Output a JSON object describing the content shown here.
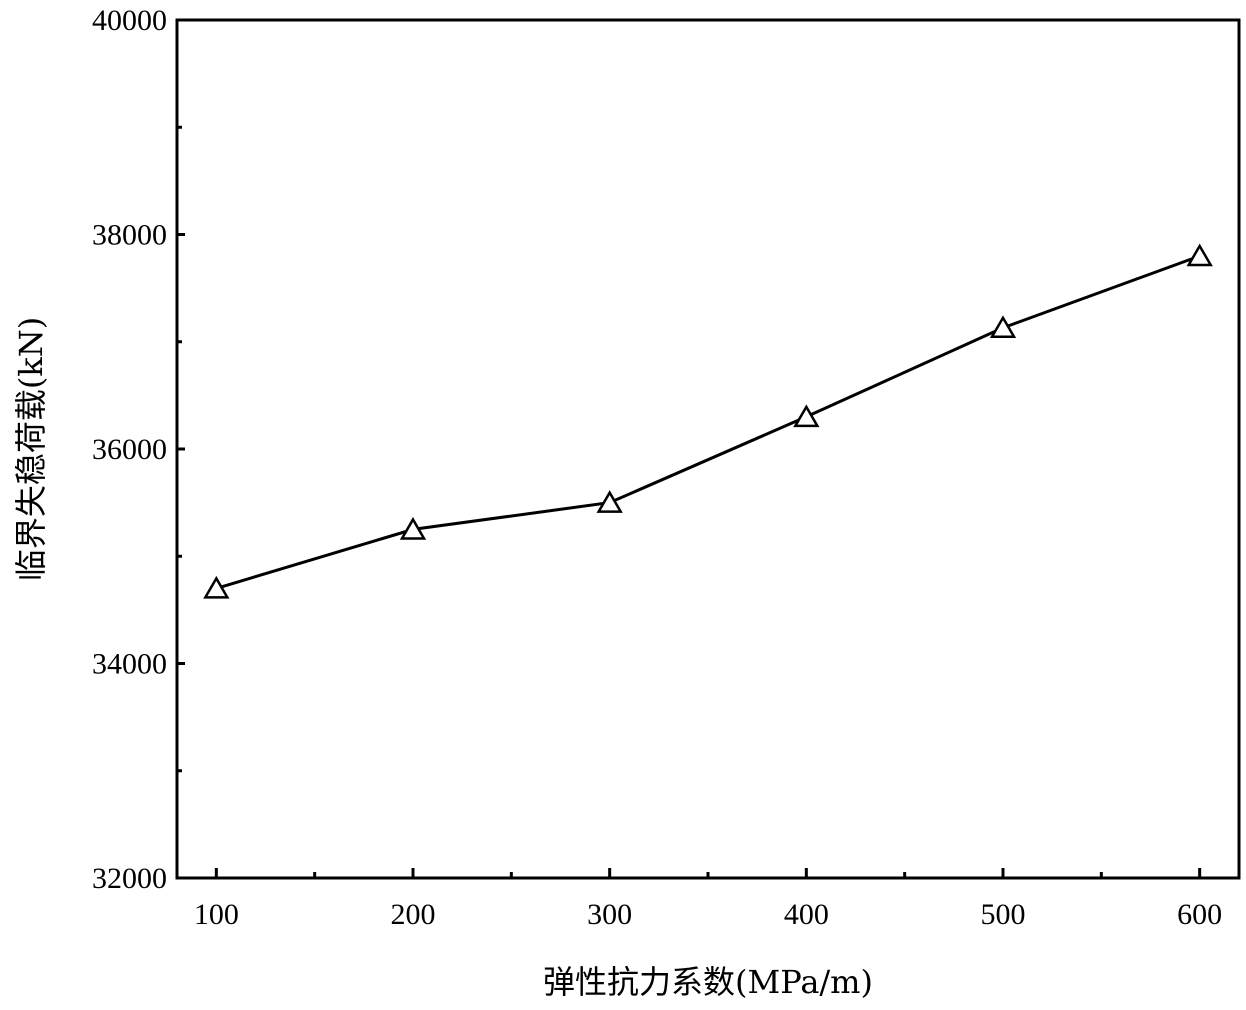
{
  "chart_data": {
    "type": "line",
    "title": "",
    "xlabel": "弹性抗力系数(MPa/m)",
    "ylabel": "临界失稳荷载(kN)",
    "xlim": [
      80,
      620
    ],
    "ylim": [
      32000,
      40000
    ],
    "x_ticks": [
      100,
      200,
      300,
      400,
      500,
      600
    ],
    "y_ticks": [
      32000,
      34000,
      36000,
      38000,
      40000
    ],
    "x_minor_ticks": [
      150,
      250,
      350,
      450,
      550
    ],
    "y_minor_ticks": [
      33000,
      35000,
      37000,
      39000
    ],
    "grid": false,
    "series": [
      {
        "marker": "open-triangle",
        "color": "#000000",
        "x": [
          100,
          200,
          300,
          400,
          500,
          600
        ],
        "values": [
          34700,
          35250,
          35500,
          36300,
          37130,
          37800
        ]
      }
    ]
  }
}
